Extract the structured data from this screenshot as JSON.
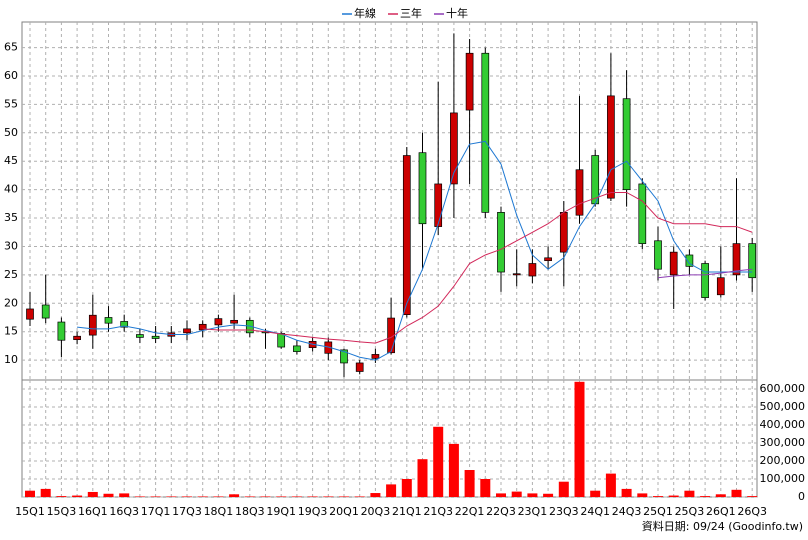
{
  "chart_data": {
    "type": "candlestick",
    "categories": [
      "15Q1",
      null,
      "15Q3",
      null,
      "16Q1",
      null,
      "16Q3",
      null,
      "17Q1",
      null,
      "17Q3",
      null,
      "18Q1",
      null,
      "18Q3",
      null,
      "19Q1",
      null,
      "19Q3",
      null,
      "20Q1",
      null,
      "20Q3",
      null,
      "21Q1",
      null,
      "21Q3",
      null,
      "22Q1",
      null,
      "22Q3",
      null,
      "23Q1",
      null,
      "23Q3",
      null,
      "24Q1",
      null,
      "24Q3",
      null,
      "25Q1",
      null,
      "25Q3",
      null,
      "26Q1",
      null,
      "26Q3"
    ],
    "open": [
      17.2,
      19.7,
      16.7,
      13.6,
      14.4,
      17.5,
      16.8,
      14.5,
      14.2,
      14.2,
      14.8,
      15.3,
      16.2,
      16.5,
      17,
      15,
      14.7,
      12.5,
      12.2,
      11.2,
      11.8,
      8,
      10.3,
      11.3,
      18,
      46.5,
      33.5,
      41,
      54,
      64,
      36,
      25,
      24.8,
      27.5,
      29,
      35.5,
      46,
      38.5,
      56,
      41,
      31,
      25,
      28.5,
      27,
      21.5,
      25,
      30.5
    ],
    "high": [
      22,
      25,
      17.5,
      15,
      21.5,
      19.5,
      18,
      15.5,
      16,
      16,
      17,
      17,
      18,
      21.5,
      17.5,
      15.5,
      15,
      13.5,
      14,
      14,
      12,
      10,
      12,
      21,
      47.5,
      50,
      59,
      67.5,
      66.5,
      65,
      37,
      29.5,
      29.5,
      30,
      38,
      56.5,
      47,
      64,
      61,
      42,
      33.5,
      30,
      29.5,
      27.5,
      30,
      42,
      31.5
    ],
    "low": [
      16,
      16.5,
      10.5,
      12.8,
      12,
      15,
      15,
      13,
      13,
      13,
      13.5,
      14,
      15,
      15.5,
      14,
      12,
      12,
      11,
      11.5,
      10,
      7,
      7.5,
      9.5,
      11,
      17.5,
      26,
      32,
      35,
      41,
      35,
      22,
      23,
      23.5,
      26,
      23,
      34,
      37,
      38,
      37,
      29.5,
      24,
      19,
      25,
      20.5,
      21,
      24,
      22
    ],
    "close": [
      19,
      17.4,
      13.5,
      14.2,
      17.9,
      16.5,
      15.8,
      14,
      13.8,
      14.8,
      15.5,
      16.3,
      17.3,
      17,
      14.8,
      14.8,
      12.3,
      11.5,
      13.3,
      13.2,
      9.5,
      9.5,
      11,
      17.4,
      46,
      34,
      41,
      53.5,
      64,
      36,
      25.5,
      25.2,
      27,
      28,
      36,
      43.5,
      37.5,
      56.5,
      40,
      30.5,
      26,
      29,
      26.5,
      21,
      24.5,
      30.5,
      24.5
    ],
    "up_color": "#cc0000",
    "down_color": "#33cc33",
    "ylim": [
      6.5,
      69.5
    ],
    "yticks": [
      10,
      15,
      20,
      25,
      30,
      35,
      40,
      45,
      50,
      55,
      60,
      65
    ],
    "grid": true,
    "series": [
      {
        "name": "年線",
        "color": "#1e78d2",
        "values": [
          null,
          null,
          null,
          15.8,
          15.5,
          15.5,
          16,
          15.5,
          14.8,
          14.5,
          14.5,
          15.2,
          15.8,
          16.2,
          16,
          15.2,
          14.6,
          13.5,
          12.8,
          12.3,
          11.5,
          10.5,
          10,
          11.5,
          20,
          26,
          34,
          43,
          48,
          48.5,
          44.5,
          35.5,
          28.5,
          26,
          28,
          33.5,
          37.5,
          43.5,
          45,
          41.5,
          38,
          31,
          27,
          25.5,
          25.5,
          25.5,
          25.5
        ]
      },
      {
        "name": "三年",
        "color": "#d2285a",
        "values": [
          null,
          null,
          null,
          null,
          null,
          null,
          null,
          null,
          null,
          null,
          null,
          15.5,
          15.3,
          15.3,
          15.3,
          15,
          14.6,
          14.3,
          14,
          13.7,
          13.5,
          13.2,
          13,
          14,
          16,
          17.5,
          19.5,
          23,
          27,
          28.5,
          29.5,
          31,
          32.5,
          34,
          36,
          37.5,
          38.5,
          39.5,
          39.5,
          38,
          35,
          34,
          34,
          34,
          33.5,
          33.5,
          32.5
        ]
      },
      {
        "name": "十年",
        "color": "#8c3cb4",
        "values": [
          null,
          null,
          null,
          null,
          null,
          null,
          null,
          null,
          null,
          null,
          null,
          null,
          null,
          null,
          null,
          null,
          null,
          null,
          null,
          null,
          null,
          null,
          null,
          null,
          null,
          null,
          null,
          null,
          null,
          null,
          null,
          null,
          null,
          null,
          null,
          null,
          null,
          null,
          null,
          null,
          24.5,
          24.8,
          25,
          25,
          25.3,
          25.7,
          26
        ]
      }
    ],
    "volume": {
      "color": "#ff0000",
      "values": [
        35000,
        45000,
        5000,
        8000,
        28000,
        18000,
        20000,
        3000,
        3000,
        3000,
        3000,
        3000,
        3000,
        15000,
        3000,
        3000,
        3000,
        3000,
        3000,
        3000,
        3000,
        3000,
        22000,
        70000,
        100000,
        210000,
        390000,
        295000,
        150000,
        100000,
        20000,
        30000,
        20000,
        18000,
        85000,
        640000,
        35000,
        130000,
        45000,
        20000,
        5000,
        8000,
        35000,
        5000,
        15000,
        40000,
        5000
      ],
      "ylim": [
        0,
        650000
      ],
      "yticks": [
        0,
        {
          "value": 100000,
          "label": "100,000"
        },
        {
          "value": 200000,
          "label": "200,000"
        },
        {
          "value": 300000,
          "label": "300,000"
        },
        {
          "value": 400000,
          "label": "400,000"
        },
        {
          "value": 500000,
          "label": "500,000"
        },
        {
          "value": 600000,
          "label": "600,000"
        }
      ]
    },
    "footer": "資料日期: 09/24  (Goodinfo.tw)"
  }
}
